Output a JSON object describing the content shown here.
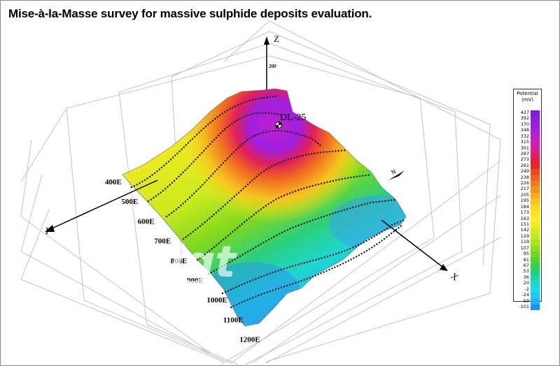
{
  "title": "Mise-à-la-Masse survey for massive sulphide deposits evaluation.",
  "axes": {
    "x_label": "X",
    "y_label": "Y",
    "z_label": "Z",
    "z_tick": "200"
  },
  "borehole_label": "DL-25",
  "north_label": "N",
  "watermark": "igt",
  "legend": {
    "title_line1": "Potential",
    "title_line2": "(mV)",
    "levels": [
      "427",
      "392",
      "370",
      "348",
      "332",
      "315",
      "301",
      "287",
      "273",
      "261",
      "249",
      "238",
      "226",
      "217",
      "205",
      "195",
      "184",
      "173",
      "163",
      "151",
      "142",
      "129",
      "119",
      "107",
      "95",
      "81",
      "67",
      "53",
      "36",
      "20",
      "-2",
      "-24",
      "-59",
      "-101"
    ],
    "colors": [
      "#7d1fe0",
      "#8a1fe0",
      "#9a1fde",
      "#ac1fd8",
      "#be1fcc",
      "#cc1fb4",
      "#d81f98",
      "#e21f6e",
      "#e61f42",
      "#e8281f",
      "#ec4b1f",
      "#f0631f",
      "#f27a1f",
      "#f5921f",
      "#f7aa1f",
      "#f9c21f",
      "#fbd81f",
      "#fce51f",
      "#f7ee1f",
      "#e8ef1f",
      "#d4ec1f",
      "#c0e81f",
      "#a8e21f",
      "#8ddc1f",
      "#6cd81f",
      "#4ed42a",
      "#34d050",
      "#1fd27a",
      "#1fd4a4",
      "#1fd6cc",
      "#1fd8ee",
      "#1fc8f4",
      "#1fb0f2",
      "#1f90ee"
    ]
  },
  "chart_data": {
    "type": "surface",
    "title": "Mise-à-la-Masse survey for massive sulphide deposits evaluation.",
    "xlabel": "X",
    "ylabel": "Y",
    "zlabel": "Z",
    "y_ticks": [
      "400E",
      "500E",
      "600E",
      "700E",
      "800E",
      "900E",
      "1000E",
      "1100E",
      "1200E"
    ],
    "colorbar_label": "Potential (mV)",
    "colorbar_levels": [
      427,
      392,
      370,
      348,
      332,
      315,
      301,
      287,
      273,
      261,
      249,
      238,
      226,
      217,
      205,
      195,
      184,
      173,
      163,
      151,
      142,
      129,
      119,
      107,
      95,
      81,
      67,
      53,
      36,
      20,
      -2,
      -24,
      -59,
      -101
    ],
    "max_value_near": "DL-25",
    "grid": true
  }
}
